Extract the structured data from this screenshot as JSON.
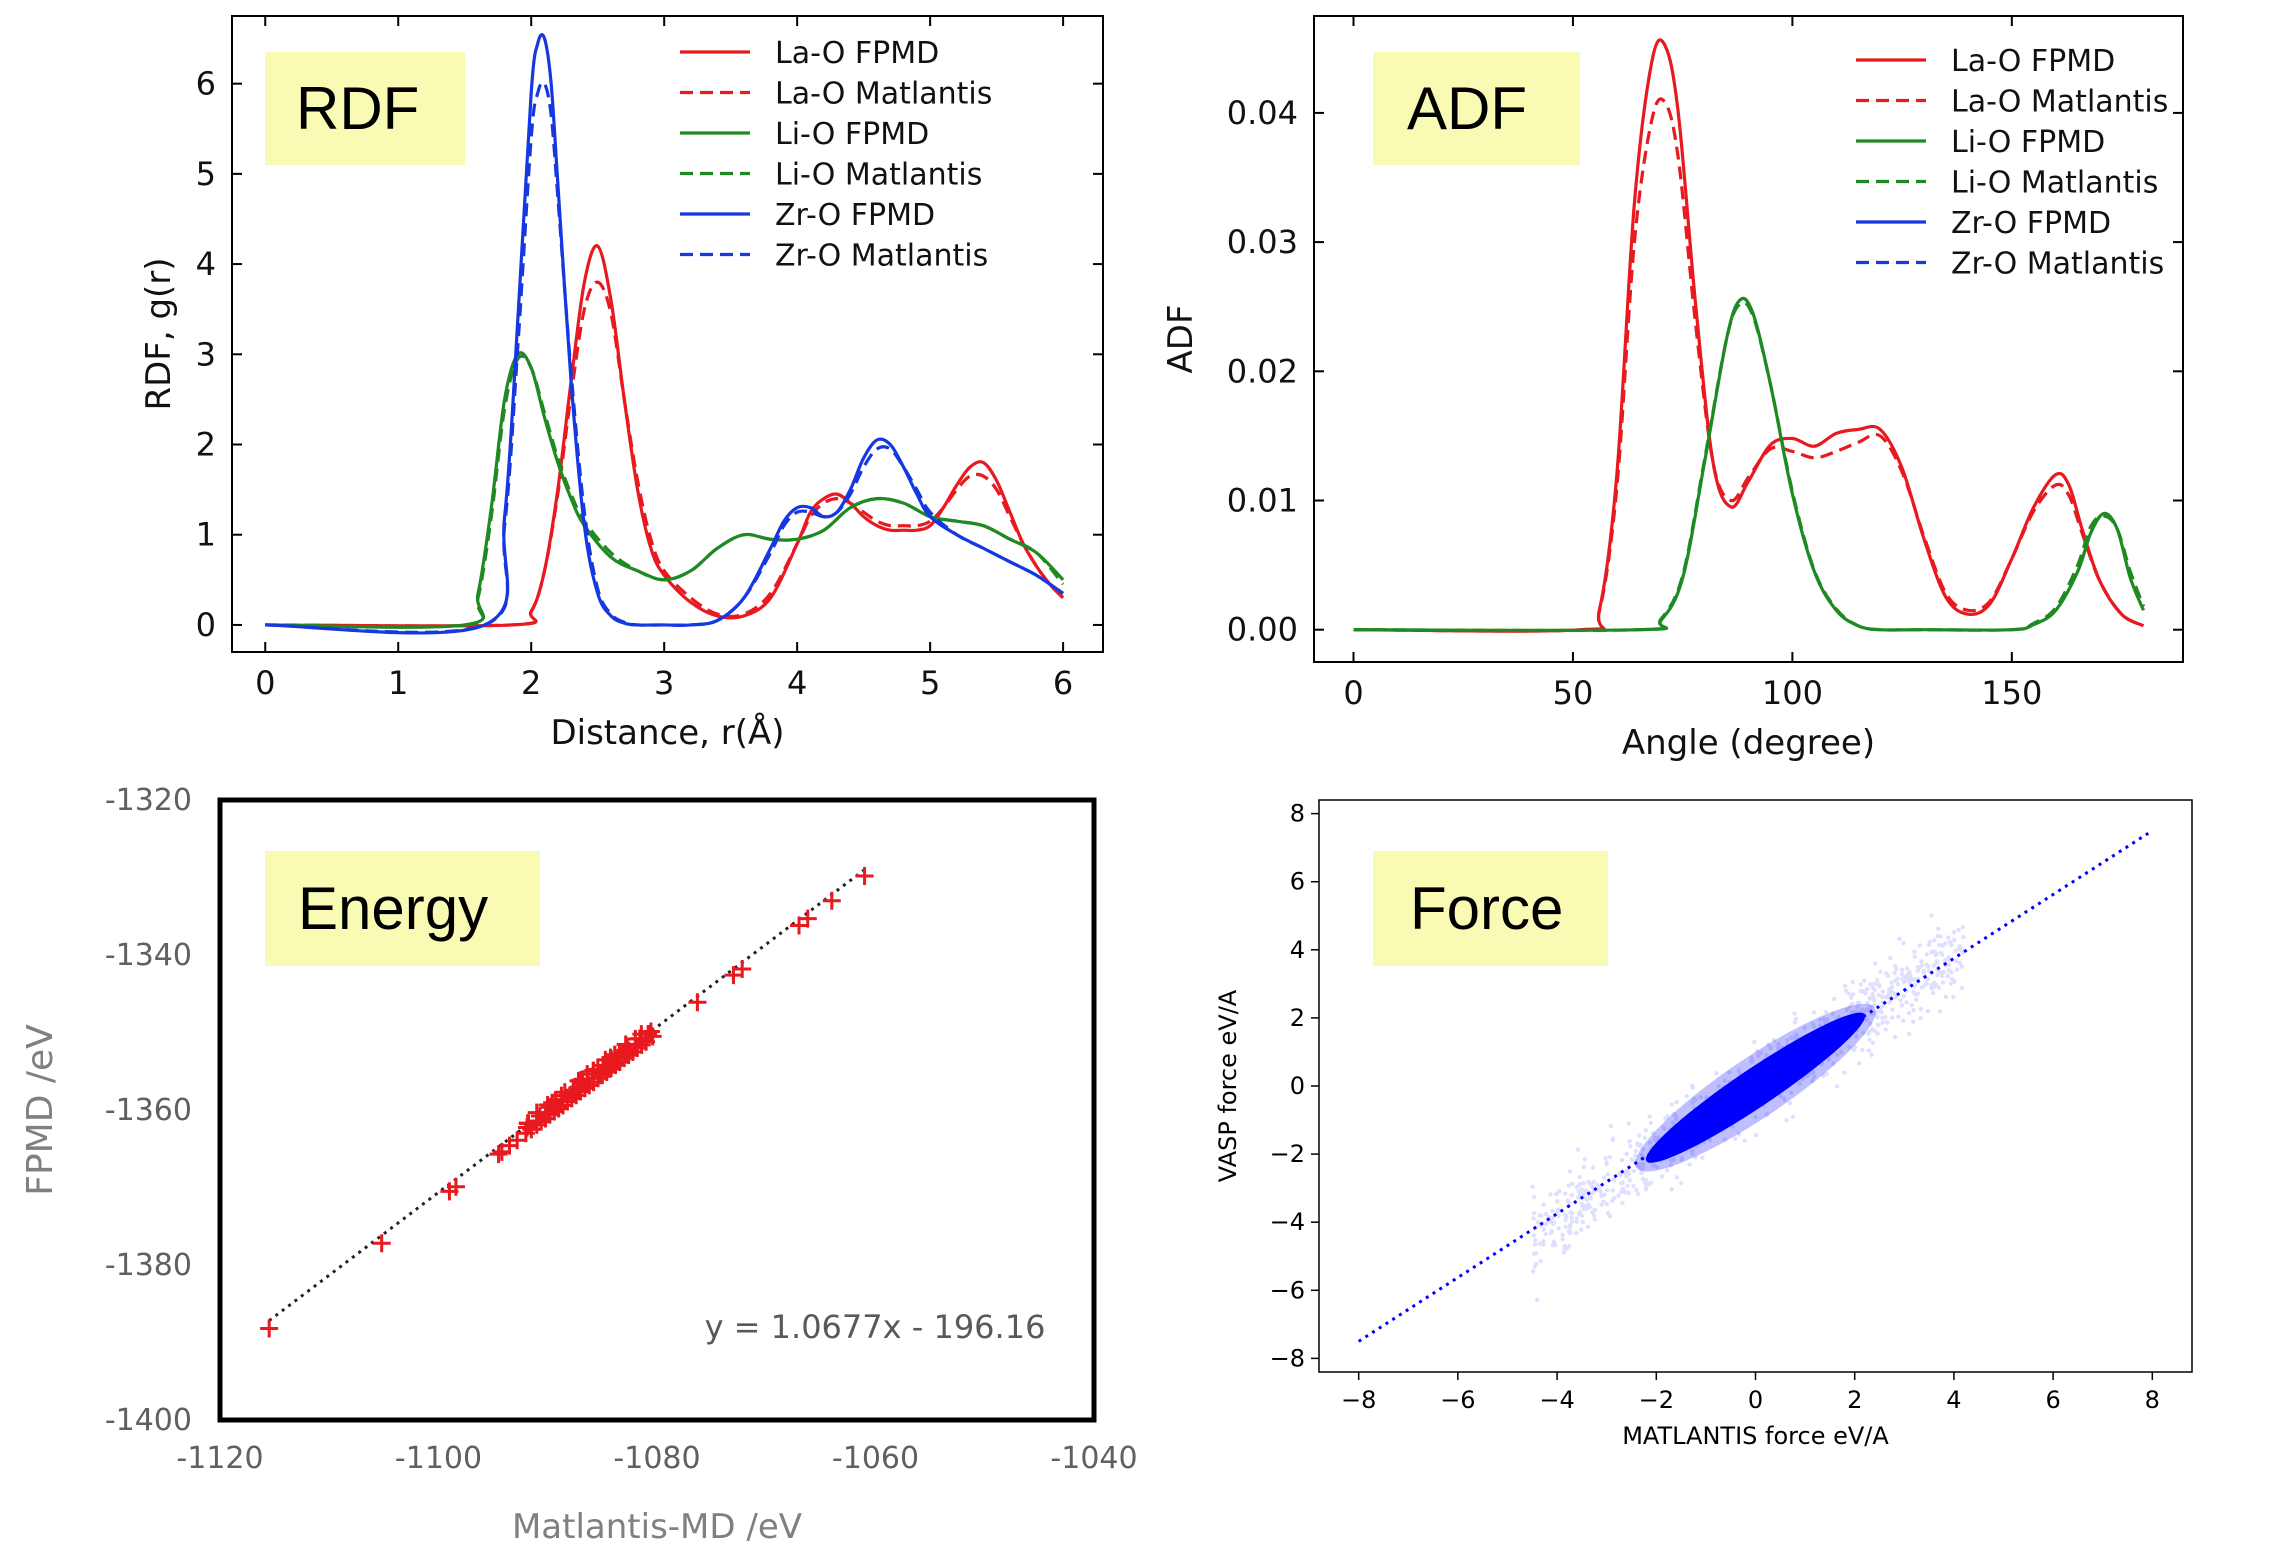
{
  "colors": {
    "red": "#e8191f",
    "green": "#1f8a22",
    "blue": "#1638e0",
    "tag_bg": "#f9fbb4",
    "marker": "#e8191f",
    "force": "#0000ff"
  },
  "chart_data": [
    {
      "id": "rdf",
      "type": "line",
      "tag": "RDF",
      "xlabel": "Distance, r(Å)",
      "ylabel": "RDF, g(r)",
      "xlim": [
        -0.25,
        6.3
      ],
      "ylim": [
        -0.3,
        6.75
      ],
      "xticks": [
        0,
        1,
        2,
        3,
        4,
        5,
        6
      ],
      "yticks": [
        0,
        1,
        2,
        3,
        4,
        5,
        6
      ],
      "legend_position": "top-right",
      "series": [
        {
          "name": "La-O  FPMD",
          "color": "red",
          "dash": "solid",
          "x": [
            0,
            1.85,
            2.0,
            2.1,
            2.2,
            2.3,
            2.4,
            2.5,
            2.6,
            2.7,
            2.8,
            2.9,
            3.0,
            3.2,
            3.4,
            3.6,
            3.8,
            4.0,
            4.1,
            4.2,
            4.3,
            4.4,
            4.5,
            4.6,
            4.7,
            4.8,
            4.9,
            5.0,
            5.1,
            5.2,
            5.3,
            5.4,
            5.5,
            5.6,
            5.7,
            5.8,
            5.9,
            6.0
          ],
          "y": [
            0,
            0,
            0.15,
            0.6,
            1.5,
            2.7,
            3.8,
            4.2,
            3.6,
            2.5,
            1.5,
            0.85,
            0.55,
            0.25,
            0.1,
            0.1,
            0.3,
            0.9,
            1.25,
            1.4,
            1.45,
            1.35,
            1.2,
            1.1,
            1.05,
            1.05,
            1.05,
            1.1,
            1.3,
            1.55,
            1.75,
            1.8,
            1.6,
            1.25,
            0.9,
            0.65,
            0.45,
            0.3
          ]
        },
        {
          "name": "La-O  Matlantis",
          "color": "red",
          "dash": "dashed",
          "x": [
            0,
            1.85,
            2.0,
            2.1,
            2.2,
            2.3,
            2.4,
            2.5,
            2.6,
            2.7,
            2.8,
            2.9,
            3.0,
            3.2,
            3.4,
            3.6,
            3.8,
            4.0,
            4.1,
            4.2,
            4.3,
            4.4,
            4.5,
            4.6,
            4.7,
            4.8,
            4.9,
            5.0,
            5.1,
            5.2,
            5.3,
            5.4,
            5.5,
            5.6,
            5.7,
            5.8,
            5.9,
            6.0
          ],
          "y": [
            0,
            0,
            0.15,
            0.6,
            1.45,
            2.55,
            3.5,
            3.8,
            3.45,
            2.5,
            1.6,
            0.95,
            0.6,
            0.3,
            0.12,
            0.12,
            0.35,
            0.9,
            1.2,
            1.35,
            1.4,
            1.35,
            1.25,
            1.15,
            1.1,
            1.1,
            1.1,
            1.15,
            1.3,
            1.5,
            1.65,
            1.65,
            1.5,
            1.2,
            0.9,
            0.65,
            0.45,
            0.3
          ]
        },
        {
          "name": "Li-O  FPMD",
          "color": "green",
          "dash": "solid",
          "x": [
            0,
            1.5,
            1.6,
            1.7,
            1.8,
            1.9,
            2.0,
            2.1,
            2.2,
            2.3,
            2.4,
            2.6,
            2.8,
            3.0,
            3.2,
            3.4,
            3.6,
            3.8,
            4.0,
            4.2,
            4.4,
            4.6,
            4.8,
            5.0,
            5.2,
            5.4,
            5.6,
            5.8,
            6.0
          ],
          "y": [
            0,
            0,
            0.35,
            1.3,
            2.5,
            3.0,
            2.85,
            2.3,
            1.8,
            1.4,
            1.1,
            0.75,
            0.6,
            0.5,
            0.6,
            0.85,
            1.0,
            0.95,
            0.95,
            1.05,
            1.3,
            1.4,
            1.35,
            1.2,
            1.15,
            1.1,
            0.95,
            0.8,
            0.5
          ]
        },
        {
          "name": "Li-O  Matlantis",
          "color": "green",
          "dash": "dashed",
          "x": [
            0,
            1.5,
            1.6,
            1.7,
            1.8,
            1.9,
            2.0,
            2.1,
            2.2,
            2.3,
            2.4,
            2.6,
            2.8,
            3.0,
            3.2,
            3.4,
            3.6,
            3.8,
            4.0,
            4.2,
            4.4,
            4.6,
            4.8,
            5.0,
            5.2,
            5.4,
            5.6,
            5.8,
            6.0
          ],
          "y": [
            0,
            0,
            0.3,
            1.2,
            2.4,
            2.95,
            2.85,
            2.35,
            1.85,
            1.45,
            1.15,
            0.8,
            0.6,
            0.5,
            0.6,
            0.85,
            1.0,
            0.95,
            0.95,
            1.05,
            1.3,
            1.4,
            1.35,
            1.2,
            1.15,
            1.1,
            0.95,
            0.8,
            0.45
          ]
        },
        {
          "name": "Zr-O  FPMD",
          "color": "blue",
          "dash": "solid",
          "x": [
            0,
            1.65,
            1.8,
            1.9,
            2.0,
            2.05,
            2.1,
            2.15,
            2.2,
            2.3,
            2.4,
            2.5,
            2.6,
            2.7,
            2.8,
            3.0,
            3.2,
            3.4,
            3.6,
            3.8,
            3.9,
            4.0,
            4.1,
            4.2,
            4.3,
            4.4,
            4.5,
            4.6,
            4.7,
            4.8,
            4.9,
            5.0,
            5.2,
            5.4,
            5.6,
            5.8,
            6.0
          ],
          "y": [
            0,
            0,
            1.2,
            3.4,
            5.9,
            6.45,
            6.5,
            6.0,
            4.9,
            2.7,
            1.1,
            0.35,
            0.1,
            0.02,
            0,
            0,
            0,
            0.05,
            0.3,
            0.85,
            1.15,
            1.3,
            1.3,
            1.2,
            1.25,
            1.5,
            1.85,
            2.05,
            2.0,
            1.75,
            1.45,
            1.2,
            1.0,
            0.85,
            0.7,
            0.55,
            0.35
          ]
        },
        {
          "name": "Zr-O  Matlantis",
          "color": "blue",
          "dash": "dashed",
          "x": [
            0,
            1.65,
            1.8,
            1.9,
            2.0,
            2.05,
            2.1,
            2.15,
            2.2,
            2.3,
            2.4,
            2.5,
            2.6,
            2.7,
            2.8,
            3.0,
            3.2,
            3.4,
            3.6,
            3.8,
            3.9,
            4.0,
            4.1,
            4.2,
            4.3,
            4.4,
            4.5,
            4.6,
            4.7,
            4.8,
            4.9,
            5.0,
            5.2,
            5.4,
            5.6,
            5.8,
            6.0
          ],
          "y": [
            0,
            0,
            1.1,
            3.1,
            5.4,
            5.9,
            6.0,
            5.65,
            4.75,
            2.8,
            1.25,
            0.4,
            0.12,
            0.03,
            0,
            0,
            0,
            0.05,
            0.3,
            0.8,
            1.1,
            1.25,
            1.25,
            1.2,
            1.25,
            1.45,
            1.75,
            1.95,
            1.95,
            1.75,
            1.5,
            1.25,
            1.0,
            0.85,
            0.7,
            0.55,
            0.35
          ]
        }
      ]
    },
    {
      "id": "adf",
      "type": "line",
      "tag": "ADF",
      "xlabel": "Angle (degree)",
      "ylabel": "ADF",
      "xlim": [
        -9,
        189
      ],
      "ylim": [
        -0.0025,
        0.0475
      ],
      "xticks": [
        0,
        50,
        100,
        150
      ],
      "yticks": [
        0.0,
        0.01,
        0.02,
        0.03,
        0.04
      ],
      "ytick_labels": [
        "0.00",
        "0.01",
        "0.02",
        "0.03",
        "0.04"
      ],
      "legend_position": "top-right",
      "series": [
        {
          "name": "La-O  FPMD",
          "color": "red",
          "dash": "solid",
          "x": [
            0,
            52,
            56,
            60,
            64,
            68,
            71,
            74,
            78,
            82,
            86,
            90,
            95,
            100,
            105,
            110,
            115,
            120,
            125,
            130,
            135,
            140,
            145,
            150,
            155,
            160,
            163,
            166,
            170,
            175,
            180
          ],
          "y": [
            0,
            0,
            0.0015,
            0.012,
            0.033,
            0.044,
            0.0452,
            0.04,
            0.025,
            0.0128,
            0.0095,
            0.0115,
            0.0143,
            0.0148,
            0.0142,
            0.0152,
            0.0155,
            0.0155,
            0.0125,
            0.007,
            0.0025,
            0.0012,
            0.002,
            0.0055,
            0.0095,
            0.012,
            0.0112,
            0.0078,
            0.0038,
            0.0012,
            0.0003
          ]
        },
        {
          "name": "La-O  Matlantis",
          "color": "red",
          "dash": "dashed",
          "x": [
            0,
            52,
            56,
            60,
            64,
            68,
            71,
            74,
            78,
            82,
            86,
            90,
            95,
            100,
            105,
            110,
            115,
            120,
            125,
            130,
            135,
            140,
            145,
            150,
            155,
            160,
            163,
            166,
            170,
            175,
            180
          ],
          "y": [
            0,
            0,
            0.0014,
            0.011,
            0.03,
            0.0395,
            0.0408,
            0.0365,
            0.0235,
            0.0128,
            0.01,
            0.0118,
            0.014,
            0.0138,
            0.0133,
            0.0138,
            0.0145,
            0.015,
            0.0122,
            0.0072,
            0.0028,
            0.0015,
            0.0022,
            0.0055,
            0.0092,
            0.0112,
            0.0104,
            0.0075,
            0.0038,
            0.0012,
            0.0003
          ]
        },
        {
          "name": "Li-O  FPMD",
          "color": "green",
          "dash": "solid",
          "x": [
            0,
            65,
            70,
            75,
            80,
            85,
            88,
            91,
            95,
            100,
            105,
            110,
            115,
            120,
            130,
            150,
            155,
            160,
            165,
            168,
            171,
            174,
            177,
            180
          ],
          "y": [
            0,
            0,
            0.0007,
            0.004,
            0.013,
            0.0225,
            0.0255,
            0.0245,
            0.019,
            0.0105,
            0.0045,
            0.0015,
            0.0003,
            0,
            0,
            0,
            0.0004,
            0.0015,
            0.0045,
            0.0075,
            0.009,
            0.0078,
            0.004,
            0.0015
          ]
        },
        {
          "name": "Li-O  Matlantis",
          "color": "green",
          "dash": "dashed",
          "x": [
            0,
            65,
            70,
            75,
            80,
            85,
            88,
            91,
            95,
            100,
            105,
            110,
            115,
            120,
            130,
            150,
            155,
            160,
            165,
            168,
            171,
            174,
            177,
            180
          ],
          "y": [
            0,
            0,
            0.0008,
            0.0042,
            0.0132,
            0.0225,
            0.0252,
            0.0243,
            0.019,
            0.0107,
            0.0046,
            0.0016,
            0.0003,
            0,
            0,
            0,
            0.0005,
            0.0017,
            0.005,
            0.008,
            0.0088,
            0.0078,
            0.0045,
            0.0018
          ]
        }
      ],
      "legend_only": [
        {
          "name": "Zr-O  FPMD",
          "color": "blue",
          "dash": "solid"
        },
        {
          "name": "Zr-O  Matlantis",
          "color": "blue",
          "dash": "dashed"
        }
      ]
    },
    {
      "id": "energy",
      "type": "scatter",
      "tag": "Energy",
      "xlabel": "Matlantis-MD /eV",
      "ylabel": "FPMD /eV",
      "xlim": [
        -1120,
        -1040
      ],
      "ylim": [
        -1400,
        -1320
      ],
      "xticks": [
        -1120,
        -1100,
        -1080,
        -1060,
        -1040
      ],
      "yticks": [
        -1320,
        -1340,
        -1360,
        -1380,
        -1400
      ],
      "grid": false,
      "annotation": "y = 1.0677x - 196.16",
      "fit": {
        "slope": 1.0677,
        "intercept": -196.16,
        "x_range": [
          -1115.5,
          -1061
        ]
      },
      "points_x": [
        -1115.5,
        -1105.2,
        -1099.0,
        -1098.4,
        -1094.5,
        -1094.2,
        -1093.5,
        -1092.8,
        -1092.0,
        -1091.5,
        -1091.0,
        -1090.6,
        -1090.2,
        -1089.8,
        -1089.4,
        -1089.0,
        -1088.6,
        -1088.2,
        -1087.8,
        -1087.4,
        -1087.0,
        -1086.6,
        -1086.2,
        -1085.8,
        -1085.4,
        -1085.0,
        -1084.6,
        -1084.2,
        -1083.8,
        -1083.4,
        -1083.0,
        -1082.6,
        -1082.2,
        -1081.8,
        -1081.4,
        -1081.0,
        -1080.4,
        -1076.3,
        -1073.0,
        -1072.2,
        -1067.0,
        -1066.2,
        -1064.0,
        -1061.0
      ],
      "points_y": [
        -1388.2,
        -1377.2,
        -1370.5,
        -1369.9,
        -1365.7,
        -1365.4,
        -1364.6,
        -1363.9,
        -1363.0,
        -1362.5,
        -1361.9,
        -1361.5,
        -1361.1,
        -1360.6,
        -1360.2,
        -1359.8,
        -1359.4,
        -1358.9,
        -1358.5,
        -1358.1,
        -1357.6,
        -1357.2,
        -1356.8,
        -1356.4,
        -1355.9,
        -1355.5,
        -1355.1,
        -1354.6,
        -1354.2,
        -1353.8,
        -1353.3,
        -1352.9,
        -1352.5,
        -1352.0,
        -1351.6,
        -1351.2,
        -1350.5,
        -1346.1,
        -1342.6,
        -1341.8,
        -1336.2,
        -1335.3,
        -1333.0,
        -1329.8
      ]
    },
    {
      "id": "force",
      "type": "scatter",
      "tag": "Force",
      "xlabel": "MATLANTIS force eV/A",
      "ylabel": "VASP force eV/A",
      "xlim": [
        -8.8,
        8.8
      ],
      "ylim": [
        -8.4,
        8.4
      ],
      "xticks": [
        -8,
        -6,
        -4,
        -2,
        0,
        2,
        4,
        6,
        8
      ],
      "yticks": [
        -8,
        -6,
        -4,
        -2,
        0,
        2,
        4,
        6,
        8
      ],
      "xtick_labels": [
        "−8",
        "−6",
        "−4",
        "−2",
        "0",
        "2",
        "4",
        "6",
        "8"
      ],
      "ytick_labels": [
        "−8",
        "−6",
        "−4",
        "−2",
        "0",
        "2",
        "4",
        "6",
        "8"
      ],
      "reference_line": {
        "from": [
          -8,
          -7.5
        ],
        "to": [
          8,
          7.5
        ]
      },
      "dense_band": {
        "x_range": [
          -2.2,
          2.2
        ],
        "slope": 0.98,
        "intercept": -0.05
      },
      "halo": {
        "x_range": [
          -4.5,
          4.2
        ]
      }
    }
  ]
}
